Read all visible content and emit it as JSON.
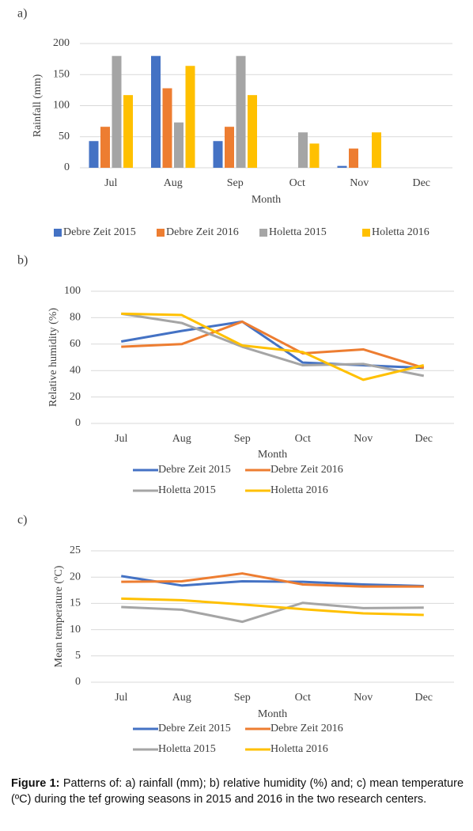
{
  "chart_data": [
    {
      "type": "bar",
      "panel_label": "a)",
      "xlabel": "Month",
      "ylabel": "Rainfall (mm)",
      "categories": [
        "Jul",
        "Aug",
        "Sep",
        "Oct",
        "Nov",
        "Dec"
      ],
      "series": [
        {
          "name": "Debre Zeit 2015",
          "color": "#4472c4",
          "values": [
            43,
            180,
            43,
            0,
            3,
            0
          ]
        },
        {
          "name": "Debre Zeit 2016",
          "color": "#ed7d31",
          "values": [
            66,
            128,
            66,
            0,
            31,
            0
          ]
        },
        {
          "name": "Holetta 2015",
          "color": "#a5a5a5",
          "values": [
            180,
            73,
            180,
            57,
            0,
            0
          ]
        },
        {
          "name": "Holetta 2016",
          "color": "#ffc000",
          "values": [
            117,
            164,
            117,
            39,
            57,
            0
          ]
        }
      ],
      "ylim": [
        0,
        200
      ],
      "yticks": [
        0,
        50,
        100,
        150,
        200
      ],
      "grid": true,
      "legend": "bottom"
    },
    {
      "type": "line",
      "panel_label": "b)",
      "xlabel": "Month",
      "ylabel": "Relative humidity (%)",
      "categories": [
        "Jul",
        "Aug",
        "Sep",
        "Oct",
        "Nov",
        "Dec"
      ],
      "series": [
        {
          "name": "Debre Zeit 2015",
          "color": "#4472c4",
          "values": [
            62,
            70,
            77,
            46,
            44,
            42
          ]
        },
        {
          "name": "Debre Zeit 2016",
          "color": "#ed7d31",
          "values": [
            58,
            60,
            77,
            53,
            56,
            42
          ]
        },
        {
          "name": "Holetta 2015",
          "color": "#a5a5a5",
          "values": [
            83,
            76,
            58,
            44,
            45,
            36
          ]
        },
        {
          "name": "Holetta 2016",
          "color": "#ffc000",
          "values": [
            83,
            82,
            59,
            54,
            33,
            44
          ]
        }
      ],
      "ylim": [
        0,
        100
      ],
      "yticks": [
        0,
        20,
        40,
        60,
        80,
        100
      ],
      "grid": true,
      "legend": "bottom"
    },
    {
      "type": "line",
      "panel_label": "c)",
      "xlabel": "Month",
      "ylabel": "Mean temperature (ºC)",
      "categories": [
        "Jul",
        "Aug",
        "Sep",
        "Oct",
        "Nov",
        "Dec"
      ],
      "series": [
        {
          "name": "Debre Zeit 2015",
          "color": "#4472c4",
          "values": [
            20.2,
            18.4,
            19.2,
            19.1,
            18.6,
            18.3
          ]
        },
        {
          "name": "Debre Zeit 2016",
          "color": "#ed7d31",
          "values": [
            19.1,
            19.2,
            20.7,
            18.6,
            18.2,
            18.2
          ]
        },
        {
          "name": "Holetta 2015",
          "color": "#a5a5a5",
          "values": [
            14.3,
            13.8,
            11.5,
            15.1,
            14.1,
            14.2
          ]
        },
        {
          "name": "Holetta 2016",
          "color": "#ffc000",
          "values": [
            15.9,
            15.6,
            14.8,
            13.9,
            13.1,
            12.8
          ]
        }
      ],
      "ylim": [
        0,
        25
      ],
      "yticks": [
        0,
        5,
        10,
        15,
        20,
        25
      ],
      "grid": true,
      "legend": "bottom"
    }
  ],
  "caption": {
    "label": "Figure 1:",
    "text": "Patterns of: a) rainfall (mm); b) relative humidity (%) and; c) mean temperature (ºC) during the tef growing seasons in 2015 and 2016 in the two research centers."
  }
}
